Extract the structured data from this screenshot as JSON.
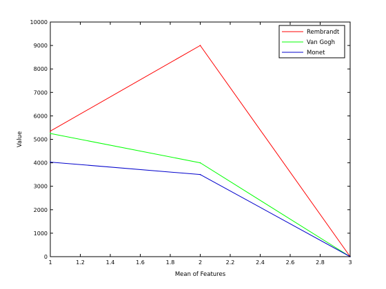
{
  "chart_data": {
    "type": "line",
    "title": "",
    "xlabel": "Mean of Features",
    "ylabel": "Value",
    "xlim": [
      1,
      3
    ],
    "ylim": [
      0,
      10000
    ],
    "xticks": [
      1,
      1.2,
      1.4,
      1.6,
      1.8,
      2,
      2.2,
      2.4,
      2.6,
      2.8,
      3
    ],
    "xtick_labels": [
      "1",
      "1.2",
      "1.4",
      "1.6",
      "1.8",
      "2",
      "2.2",
      "2.4",
      "2.6",
      "2.8",
      "3"
    ],
    "yticks": [
      0,
      1000,
      2000,
      3000,
      4000,
      5000,
      6000,
      7000,
      8000,
      9000,
      10000
    ],
    "ytick_labels": [
      "0",
      "1000",
      "2000",
      "3000",
      "4000",
      "5000",
      "6000",
      "7000",
      "8000",
      "9000",
      "10000"
    ],
    "grid": false,
    "legend_position": "top-right",
    "x": [
      1,
      2,
      3
    ],
    "series": [
      {
        "name": "Rembrandt",
        "color": "#ff0000",
        "values": [
          5350,
          9000,
          0
        ]
      },
      {
        "name": "Van Gogh",
        "color": "#00ff00",
        "values": [
          5250,
          4000,
          0
        ]
      },
      {
        "name": "Monet",
        "color": "#0000cc",
        "values": [
          4030,
          3500,
          0
        ]
      }
    ]
  }
}
